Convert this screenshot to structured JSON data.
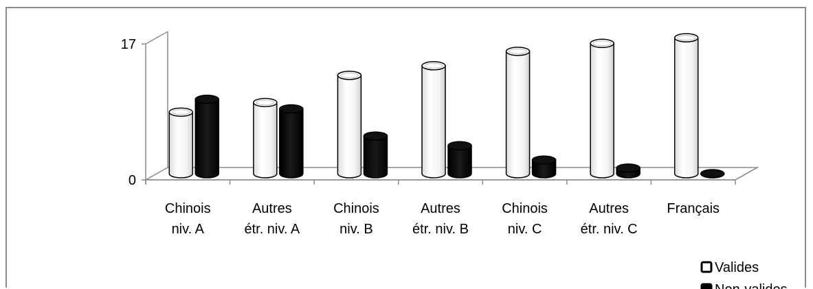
{
  "chart_data": {
    "type": "bar",
    "categories": [
      [
        "Chinois",
        "niv. A"
      ],
      [
        "Autres",
        "étr. niv. A"
      ],
      [
        "Chinois",
        "niv. B"
      ],
      [
        "Autres",
        "étr. niv. B"
      ],
      [
        "Chinois",
        "niv. C"
      ],
      [
        "Autres",
        "étr. niv. C"
      ],
      [
        "Français"
      ]
    ],
    "series": [
      {
        "name": "Valides",
        "color": "#ffffff",
        "values": [
          7.7,
          8.9,
          12.3,
          13.5,
          15.3,
          16.3,
          17.0
        ]
      },
      {
        "name": "Non-valides",
        "color": "#000000",
        "values": [
          9.3,
          8.1,
          4.7,
          3.5,
          1.7,
          0.7,
          0.0
        ]
      }
    ],
    "yticks": [
      "0",
      "17"
    ],
    "ylim": [
      0,
      17
    ],
    "three_d": true,
    "grid": false,
    "legend_position": "bottom-right"
  }
}
